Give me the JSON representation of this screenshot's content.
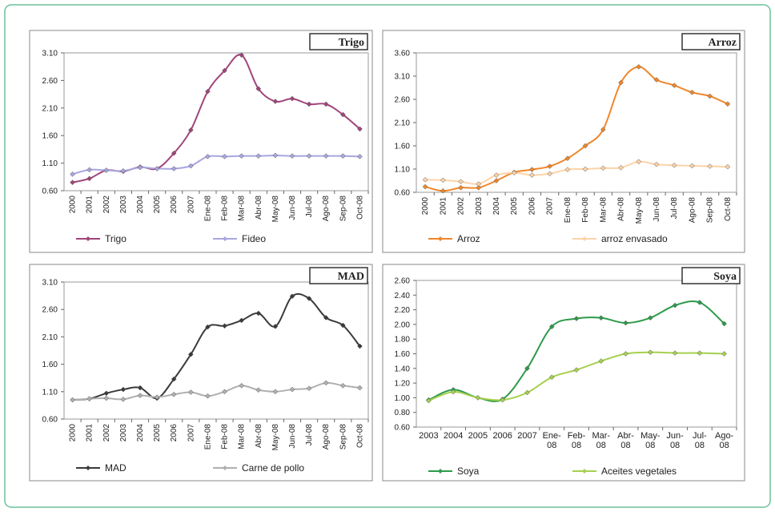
{
  "chart_data": [
    {
      "type": "line",
      "title": "Trigo",
      "categories": [
        "2000",
        "2001",
        "2002",
        "2003",
        "2004",
        "2005",
        "2006",
        "2007",
        "Ene-08",
        "Feb-08",
        "Mar-08",
        "Abr-08",
        "May-08",
        "Jun-08",
        "Jul-08",
        "Ago-08",
        "Sep-08",
        "Oct-08"
      ],
      "series": [
        {
          "name": "Trigo",
          "color": "#a0457a",
          "values": [
            0.75,
            0.82,
            0.97,
            0.95,
            1.03,
            1.0,
            1.28,
            1.7,
            2.4,
            2.78,
            3.06,
            2.45,
            2.22,
            2.27,
            2.17,
            2.17,
            1.98,
            1.72
          ]
        },
        {
          "name": "Fideo",
          "color": "#a9a6e0",
          "values": [
            0.9,
            0.98,
            0.97,
            0.96,
            1.02,
            1.0,
            1.0,
            1.05,
            1.22,
            1.22,
            1.23,
            1.23,
            1.24,
            1.23,
            1.23,
            1.23,
            1.23,
            1.22
          ]
        }
      ],
      "ylim": [
        0.6,
        3.1
      ],
      "yticks": [
        {
          "value": 0.6,
          "label": "0.60"
        },
        {
          "value": 1.1,
          "label": "1.10"
        },
        {
          "value": 1.6,
          "label": "1.60"
        },
        {
          "value": 2.1,
          "label": "2.10"
        },
        {
          "value": 2.6,
          "label": "2.60"
        },
        {
          "value": 3.1,
          "label": "3.10"
        }
      ]
    },
    {
      "type": "line",
      "title": "Arroz",
      "categories": [
        "2000",
        "2001",
        "2002",
        "2003",
        "2004",
        "2005",
        "2006",
        "2007",
        "Ene-08",
        "Feb-08",
        "Mar-08",
        "Abr-08",
        "May-08",
        "Jun-08",
        "Jul-08",
        "Ago-08",
        "Sep-08",
        "Oct-08"
      ],
      "series": [
        {
          "name": "Arroz",
          "color": "#f0862a",
          "values": [
            0.72,
            0.63,
            0.7,
            0.7,
            0.85,
            1.03,
            1.09,
            1.16,
            1.33,
            1.6,
            1.95,
            2.96,
            3.3,
            3.02,
            2.9,
            2.75,
            2.67,
            2.5
          ]
        },
        {
          "name": "arroz envasado",
          "color": "#fdd3a8",
          "values": [
            0.87,
            0.86,
            0.83,
            0.78,
            0.97,
            1.02,
            0.97,
            1.0,
            1.09,
            1.1,
            1.12,
            1.13,
            1.26,
            1.2,
            1.18,
            1.17,
            1.16,
            1.15
          ]
        }
      ],
      "ylim": [
        0.6,
        3.6
      ],
      "yticks": [
        {
          "value": 0.6,
          "label": "0.60"
        },
        {
          "value": 1.1,
          "label": "1.10"
        },
        {
          "value": 1.6,
          "label": "1.60"
        },
        {
          "value": 2.1,
          "label": "2.10"
        },
        {
          "value": 2.6,
          "label": "2.60"
        },
        {
          "value": 3.1,
          "label": "3.10"
        },
        {
          "value": 3.6,
          "label": "3.60"
        }
      ]
    },
    {
      "type": "line",
      "title": "MAD",
      "categories": [
        "2000",
        "2001",
        "2002",
        "2003",
        "2004",
        "2005",
        "2006",
        "2007",
        "Ene-08",
        "Feb-08",
        "Mar-08",
        "Abr-08",
        "May-08",
        "Jun-08",
        "Jul-08",
        "Ago-08",
        "Sep-08",
        "Oct-08"
      ],
      "series": [
        {
          "name": "MAD",
          "color": "#3a3a3a",
          "values": [
            0.95,
            0.97,
            1.07,
            1.14,
            1.17,
            0.98,
            1.33,
            1.78,
            2.28,
            2.3,
            2.4,
            2.53,
            2.29,
            2.84,
            2.8,
            2.45,
            2.31,
            1.93
          ]
        },
        {
          "name": "Carne de pollo",
          "color": "#b0b0b0",
          "values": [
            0.95,
            0.97,
            0.98,
            0.96,
            1.03,
            1.0,
            1.05,
            1.09,
            1.02,
            1.1,
            1.21,
            1.13,
            1.1,
            1.14,
            1.16,
            1.26,
            1.21,
            1.17
          ]
        }
      ],
      "ylim": [
        0.6,
        3.1
      ],
      "yticks": [
        {
          "value": 0.6,
          "label": "0.60"
        },
        {
          "value": 1.1,
          "label": "1.10"
        },
        {
          "value": 1.6,
          "label": "1.60"
        },
        {
          "value": 2.1,
          "label": "2.10"
        },
        {
          "value": 2.6,
          "label": "2.60"
        },
        {
          "value": 3.1,
          "label": "3.10"
        }
      ]
    },
    {
      "type": "line",
      "title": "Soya",
      "categories": [
        "2003",
        "2004",
        "2005",
        "2006",
        "2007",
        "Ene-08",
        "Feb-08",
        "Mar-08",
        "Abr-08",
        "May-08",
        "Jun-08",
        "Jul-08",
        "Ago-08"
      ],
      "series": [
        {
          "name": "Soya",
          "color": "#2e9a4a",
          "values": [
            0.97,
            1.11,
            1.0,
            0.98,
            1.4,
            1.97,
            2.08,
            2.09,
            2.02,
            2.09,
            2.26,
            2.3,
            2.01
          ]
        },
        {
          "name": "Aceites vegetales",
          "color": "#a6d04f",
          "values": [
            0.96,
            1.08,
            1.0,
            0.97,
            1.07,
            1.28,
            1.38,
            1.5,
            1.6,
            1.62,
            1.61,
            1.61,
            1.6
          ]
        }
      ],
      "ylim": [
        0.6,
        2.6
      ],
      "yticks": [
        {
          "value": 0.6,
          "label": "0.60"
        },
        {
          "value": 0.8,
          "label": "0.80"
        },
        {
          "value": 1.0,
          "label": "1.00"
        },
        {
          "value": 1.2,
          "label": "1.20"
        },
        {
          "value": 1.4,
          "label": "1.40"
        },
        {
          "value": 1.6,
          "label": "1.60"
        },
        {
          "value": 1.8,
          "label": "1.80"
        },
        {
          "value": 2.0,
          "label": "2.00"
        },
        {
          "value": 2.2,
          "label": "2.20"
        },
        {
          "value": 2.4,
          "label": "2.40"
        },
        {
          "value": 2.6,
          "label": "2.60"
        }
      ]
    }
  ]
}
